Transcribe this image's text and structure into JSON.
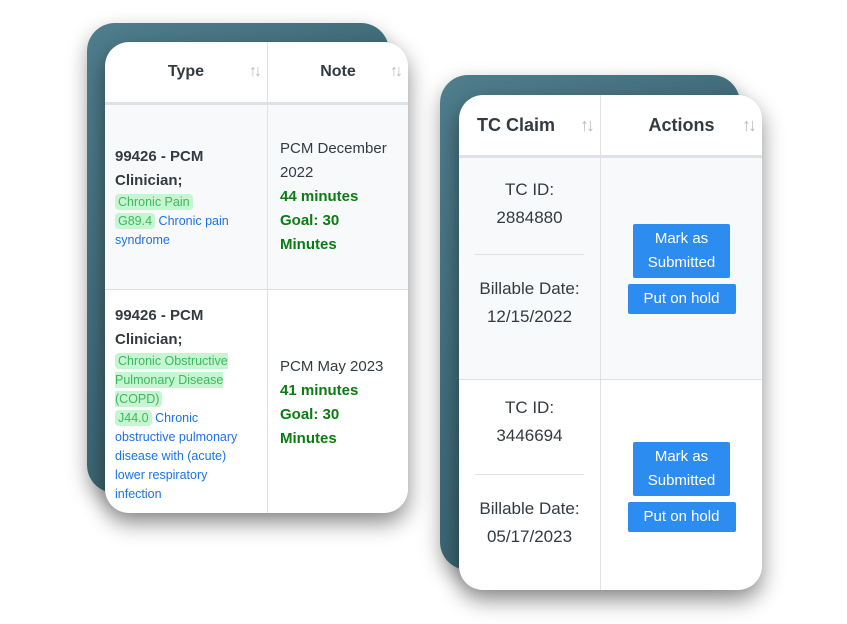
{
  "left_table": {
    "headers": [
      "Type",
      "Note"
    ],
    "sort_icon": "sort-arrows-icon",
    "rows": [
      {
        "type": "99426 - PCM Clinician;",
        "tags": [
          "Chronic Pain",
          "G89.4"
        ],
        "desc": "Chronic pain syndrome",
        "note": "PCM December 2022",
        "minutes": "44 minutes",
        "goal": "Goal: 30 Minutes"
      },
      {
        "type": "99426 - PCM Clinician;",
        "tags": [
          "Chronic Obstructive Pulmonary Disease (COPD)",
          "J44.0"
        ],
        "desc": "Chronic obstructive pulmonary disease with (acute) lower respiratory infection",
        "note": "PCM May 2023",
        "minutes": "41 minutes",
        "goal": "Goal: 30 Minutes"
      }
    ]
  },
  "right_table": {
    "headers": [
      "TC Claim",
      "Actions"
    ],
    "rows": [
      {
        "tc_id": "TC ID: 2884880",
        "billable": "Billable Date: 12/15/2022",
        "mark": "Mark as Submitted",
        "hold": "Put on hold"
      },
      {
        "tc_id": "TC ID: 3446694",
        "billable": "Billable Date: 05/17/2023",
        "mark": "Mark as Submitted",
        "hold": "Put on hold"
      }
    ]
  },
  "colors": {
    "tag_bg": "#c6f5d2",
    "tag_text": "#3cb95c",
    "link": "#1a73e8",
    "minutes": "#0a7d12",
    "button": "#2d8cf0"
  }
}
